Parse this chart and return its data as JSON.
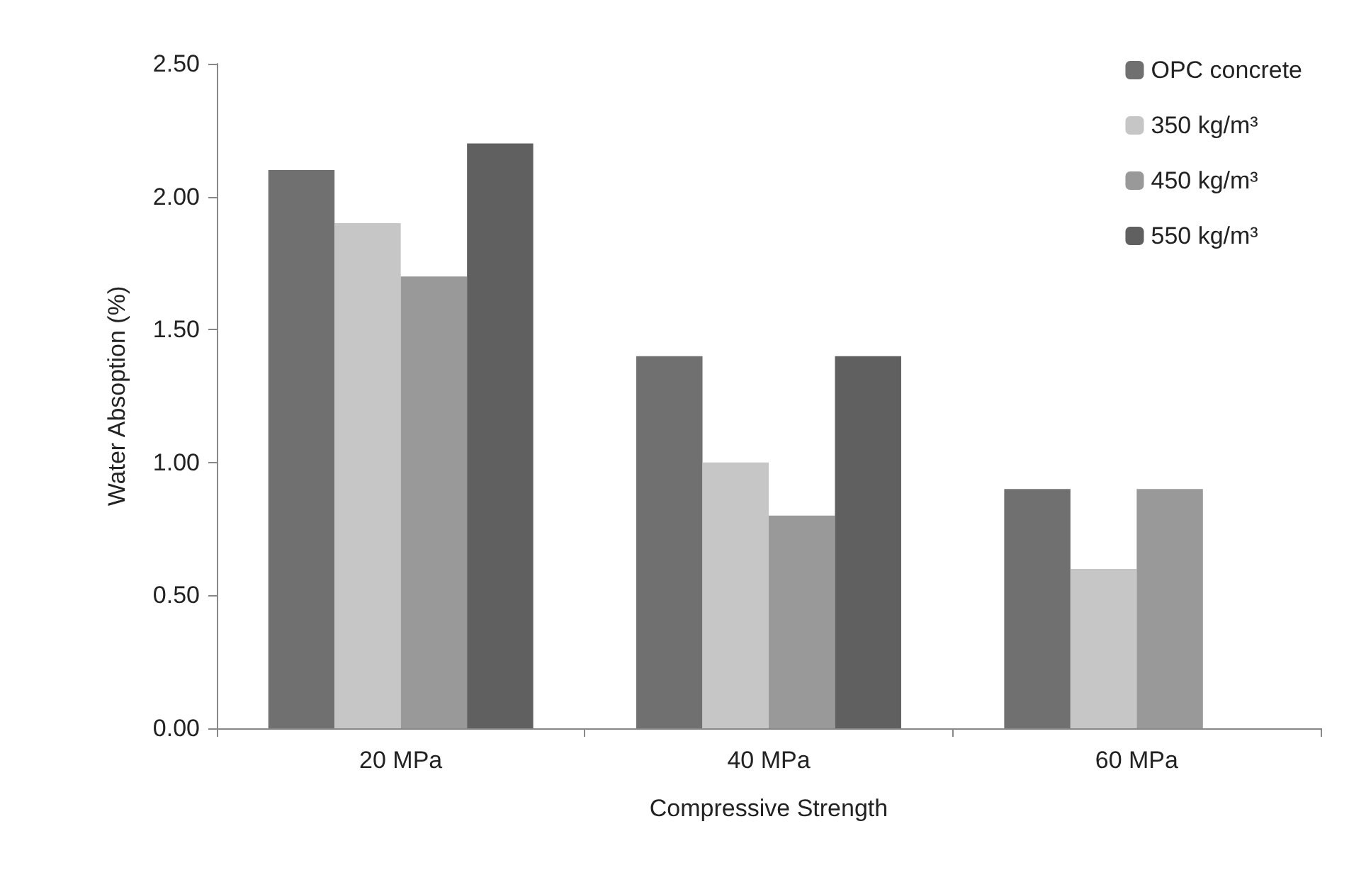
{
  "chart_data": {
    "type": "bar",
    "xlabel": "Compressive Strength",
    "ylabel": "Water Absoption (%)",
    "categories": [
      "20 MPa",
      "40 MPa",
      "60 MPa"
    ],
    "series": [
      {
        "name": "OPC concrete",
        "color": "#707070",
        "values": [
          2.1,
          1.4,
          0.9
        ]
      },
      {
        "name": "350 kg/m³",
        "color": "#c6c6c6",
        "values": [
          1.9,
          1.0,
          0.6
        ]
      },
      {
        "name": "450 kg/m³",
        "color": "#999999",
        "values": [
          1.7,
          0.8,
          0.9
        ]
      },
      {
        "name": "550 kg/m³",
        "color": "#606060",
        "values": [
          2.2,
          1.4,
          null
        ]
      }
    ],
    "ylim": [
      0,
      2.5
    ],
    "yticks": [
      {
        "value": 0,
        "label": "0.00"
      },
      {
        "value": 0.5,
        "label": "0.50"
      },
      {
        "value": 1,
        "label": "1.00"
      },
      {
        "value": 1.5,
        "label": "1.50"
      },
      {
        "value": 2,
        "label": "2.00"
      },
      {
        "value": 2.5,
        "label": "2.50"
      }
    ],
    "grid": false,
    "legend": "top right"
  }
}
